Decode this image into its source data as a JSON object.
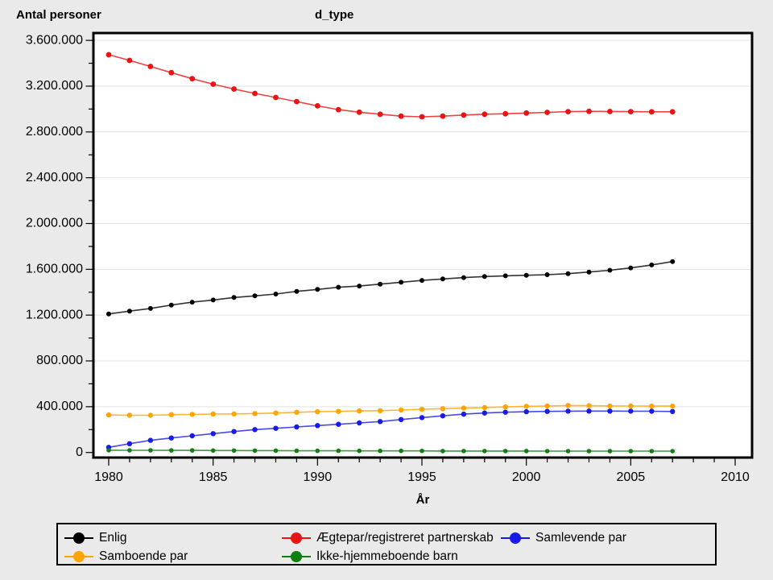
{
  "header": {
    "y_axis_title": "Antal personer",
    "chart_title": "d_type"
  },
  "chart_data": {
    "type": "line",
    "title": "d_type",
    "xlabel": "År",
    "ylabel": "Antal personer",
    "x": [
      1980,
      1981,
      1982,
      1983,
      1984,
      1985,
      1986,
      1987,
      1988,
      1989,
      1990,
      1991,
      1992,
      1993,
      1994,
      1995,
      1996,
      1997,
      1998,
      1999,
      2000,
      2001,
      2002,
      2003,
      2004,
      2005,
      2006,
      2007
    ],
    "xlim": [
      1979.3,
      2010.8
    ],
    "ylim": [
      0,
      3600000
    ],
    "grid": "horizontal-major",
    "legend_position": "bottom",
    "x_ticks": {
      "min": 1980,
      "max": 2010,
      "major_step": 5,
      "minor_step": 1,
      "major_labels": [
        "1980",
        "1985",
        "1990",
        "1995",
        "2000",
        "2005",
        "2010"
      ]
    },
    "y_ticks": {
      "min": 0,
      "max": 3600000,
      "major_step": 400000,
      "minor_step": 200000,
      "major_labels": [
        "0",
        "400.000",
        "800.000",
        "1.200.000",
        "1.600.000",
        "2.000.000",
        "2.400.000",
        "2.800.000",
        "3.200.000",
        "3.600.000"
      ]
    },
    "series": [
      {
        "name": "Enlig",
        "color": "#000000",
        "marker_radius": 3.0,
        "values": [
          1210000,
          1235000,
          1258000,
          1288000,
          1313000,
          1332000,
          1354000,
          1368000,
          1384000,
          1407000,
          1424000,
          1443000,
          1454000,
          1471000,
          1487000,
          1503000,
          1516000,
          1528000,
          1537000,
          1543000,
          1548000,
          1553000,
          1562000,
          1576000,
          1592000,
          1612000,
          1638000,
          1668000
        ]
      },
      {
        "name": "Ægtepar/registreret partnerskab",
        "color": "#ea1313",
        "marker_radius": 3.4,
        "values": [
          3475000,
          3425000,
          3372000,
          3318000,
          3265000,
          3217000,
          3175000,
          3136000,
          3101000,
          3065000,
          3028000,
          2995000,
          2972000,
          2955000,
          2938000,
          2932000,
          2938000,
          2948000,
          2955000,
          2959000,
          2965000,
          2971000,
          2977000,
          2980000,
          2979000,
          2977000,
          2976000,
          2976000
        ]
      },
      {
        "name": "Samlevende par",
        "color": "#1a1ae8",
        "marker_radius": 3.2,
        "values": [
          45000,
          77000,
          106000,
          127000,
          146000,
          165000,
          183000,
          200000,
          211000,
          223000,
          235000,
          246000,
          258000,
          270000,
          288000,
          305000,
          320000,
          335000,
          345000,
          352000,
          356000,
          359000,
          361000,
          362000,
          362000,
          361000,
          360000,
          358000
        ]
      },
      {
        "name": "Samboende par",
        "color": "#ffa500",
        "marker_radius": 3.2,
        "values": [
          328000,
          325000,
          325000,
          330000,
          333000,
          336000,
          337000,
          340000,
          345000,
          351000,
          356000,
          359000,
          363000,
          365000,
          371000,
          377000,
          383000,
          388000,
          392000,
          398000,
          403000,
          406000,
          410000,
          409000,
          407000,
          406000,
          405000,
          405000
        ]
      },
      {
        "name": "Ikke-hjemmeboende barn",
        "color": "#0f7f0f",
        "marker_radius": 2.8,
        "values": [
          20000,
          19000,
          19000,
          18000,
          18000,
          17000,
          17000,
          16000,
          16000,
          15000,
          15000,
          15000,
          14000,
          14000,
          14000,
          14000,
          13000,
          13000,
          13000,
          13000,
          13000,
          12000,
          12000,
          12000,
          12000,
          12000,
          12000,
          12000
        ]
      }
    ]
  },
  "legend": {
    "items": [
      {
        "label": "Enlig",
        "color": "#000000",
        "col": 0,
        "row": 0
      },
      {
        "label": "Ægtepar/registreret partnerskab",
        "color": "#ea1313",
        "col": 1,
        "row": 0
      },
      {
        "label": "Samlevende par",
        "color": "#1a1ae8",
        "col": 2,
        "row": 0
      },
      {
        "label": "Samboende par",
        "color": "#ffa500",
        "col": 0,
        "row": 1
      },
      {
        "label": "Ikke-hjemmeboende barn",
        "color": "#0f7f0f",
        "col": 1,
        "row": 1
      }
    ]
  },
  "style": {
    "page_bg": "#eaeaea",
    "plot_bg": "#ffffff",
    "gridline_color": "#e2e2e2",
    "frame_color": "#000000"
  }
}
